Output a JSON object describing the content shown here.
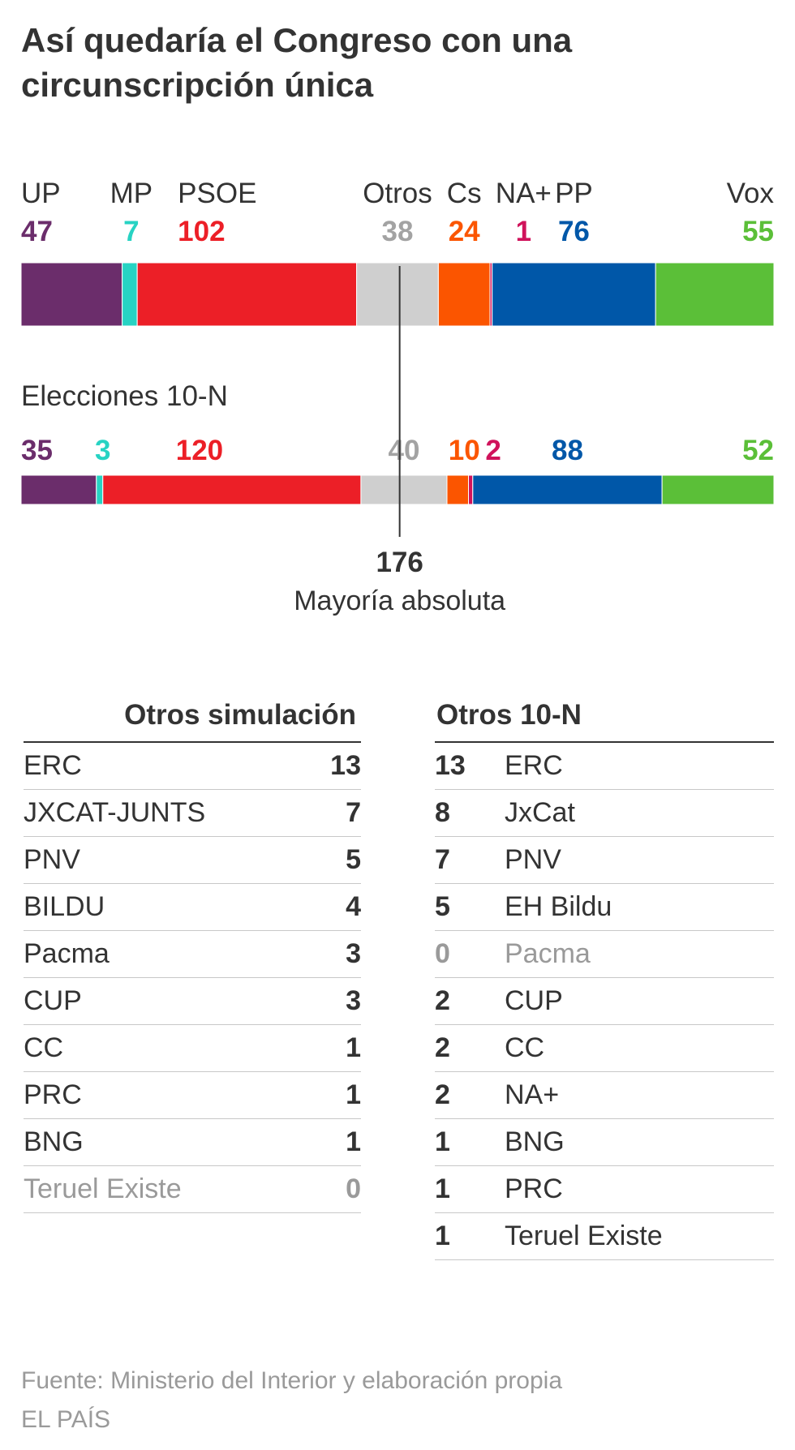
{
  "title": "Así quedaría el Congreso con una circunscripción única",
  "chart_data": {
    "type": "bar",
    "total_seats": 350,
    "simulation": [
      {
        "name": "UP",
        "value": 47,
        "color": "#6b2d6b",
        "label_color": "#6b2d6b"
      },
      {
        "name": "MP",
        "value": 7,
        "color": "#27d3c3",
        "label_color": "#27d3c3"
      },
      {
        "name": "PSOE",
        "value": 102,
        "color": "#ec1f27",
        "label_color": "#ec1f27"
      },
      {
        "name": "Otros",
        "value": 38,
        "color": "#cfcfcf",
        "label_color": "#a3a3a3"
      },
      {
        "name": "Cs",
        "value": 24,
        "color": "#fb5500",
        "label_color": "#fb5500"
      },
      {
        "name": "NA+",
        "value": 1,
        "color": "#d0135b",
        "label_color": "#d0135b"
      },
      {
        "name": "PP",
        "value": 76,
        "color": "#0057a8",
        "label_color": "#0057a8"
      },
      {
        "name": "Vox",
        "value": 55,
        "color": "#5bbf38",
        "label_color": "#5bbf38"
      }
    ],
    "election_label": "Elecciones 10-N",
    "election": [
      {
        "value": 35,
        "color": "#6b2d6b",
        "label_color": "#6b2d6b"
      },
      {
        "value": 3,
        "color": "#27d3c3",
        "label_color": "#27d3c3"
      },
      {
        "value": 120,
        "color": "#ec1f27",
        "label_color": "#ec1f27"
      },
      {
        "value": 40,
        "color": "#cfcfcf",
        "label_color": "#a3a3a3"
      },
      {
        "value": 10,
        "color": "#fb5500",
        "label_color": "#fb5500"
      },
      {
        "value": 2,
        "color": "#d0135b",
        "label_color": "#d0135b"
      },
      {
        "value": 88,
        "color": "#0057a8",
        "label_color": "#0057a8"
      },
      {
        "value": 52,
        "color": "#5bbf38",
        "label_color": "#5bbf38"
      }
    ],
    "majority": {
      "value": 176,
      "label": "Mayoría absoluta"
    }
  },
  "tables": {
    "left": {
      "header": "Otros simulación",
      "rows": [
        {
          "name": "ERC",
          "value": 13
        },
        {
          "name": "JXCAT-JUNTS",
          "value": 7
        },
        {
          "name": "PNV",
          "value": 5
        },
        {
          "name": "BILDU",
          "value": 4
        },
        {
          "name": "Pacma",
          "value": 3
        },
        {
          "name": "CUP",
          "value": 3
        },
        {
          "name": "CC",
          "value": 1
        },
        {
          "name": "PRC",
          "value": 1
        },
        {
          "name": "BNG",
          "value": 1
        },
        {
          "name": "Teruel Existe",
          "value": 0
        }
      ]
    },
    "right": {
      "header": "Otros 10-N",
      "rows": [
        {
          "name": "ERC",
          "value": 13
        },
        {
          "name": "JxCat",
          "value": 8
        },
        {
          "name": "PNV",
          "value": 7
        },
        {
          "name": "EH Bildu",
          "value": 5
        },
        {
          "name": "Pacma",
          "value": 0
        },
        {
          "name": "CUP",
          "value": 2
        },
        {
          "name": "CC",
          "value": 2
        },
        {
          "name": "NA+",
          "value": 2
        },
        {
          "name": "BNG",
          "value": 1
        },
        {
          "name": "PRC",
          "value": 1
        },
        {
          "name": "Teruel Existe",
          "value": 1
        }
      ]
    }
  },
  "footer": {
    "source": "Fuente: Ministerio del Interior y elaboración propia",
    "brand": "EL PAÍS"
  }
}
